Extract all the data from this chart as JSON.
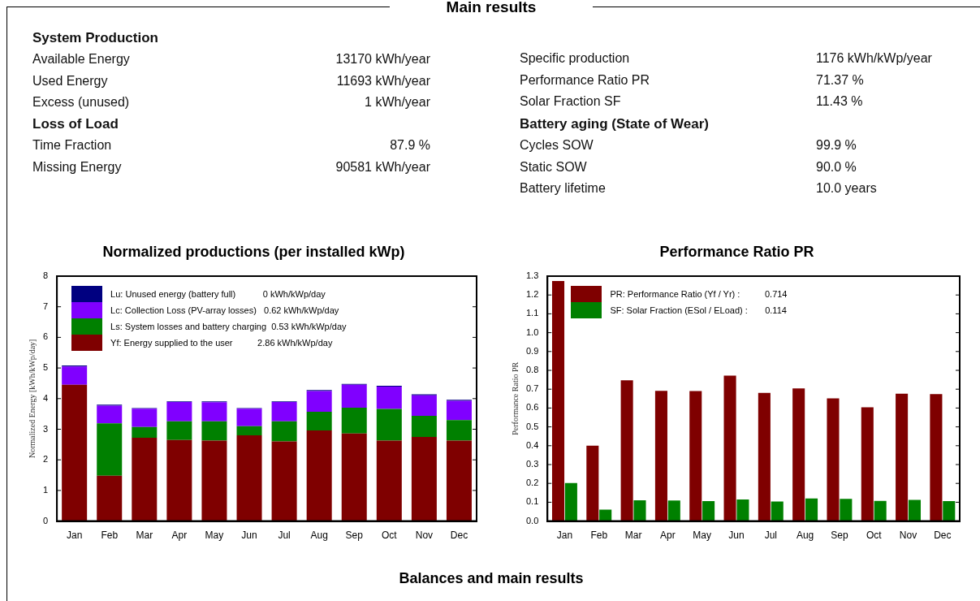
{
  "chart_data": [
    {
      "type": "other",
      "title": "Main results"
    },
    {
      "type": "other",
      "title": "System Production",
      "annotations": [
        "Available Energy",
        "13170 kWh/year",
        "Used Energy",
        "11693 kWh/year",
        "Excess (unused)",
        "1 kWh/year"
      ]
    },
    {
      "type": "other",
      "title": "Loss of Load",
      "annotations": [
        "Time Fraction",
        "87.9 %",
        "Missing Energy",
        "90581 kWh/year"
      ]
    },
    {
      "type": "other",
      "annotations": [
        "Specific production",
        "1176 kWh/kWp/year",
        "Performance Ratio PR",
        "71.37 %",
        "Solar Fraction SF",
        "11.43 %"
      ]
    },
    {
      "type": "other",
      "title": "Battery aging (State of Wear)",
      "annotations": [
        "Cycles SOW",
        "99.9 %",
        "Static SOW",
        "90.0 %",
        "Battery lifetime",
        "10.0 years"
      ]
    },
    {
      "type": "bar",
      "title": "Normalized productions (per installed kWp)",
      "ylabel": "Normalized Energy [kWh/kWp/day]",
      "stacked": true,
      "legend": "top left",
      "categories": [
        "Jan",
        "Feb",
        "Mar",
        "Apr",
        "May",
        "Jun",
        "Jul",
        "Aug",
        "Sep",
        "Oct",
        "Nov",
        "Dec"
      ],
      "ylim": [
        0,
        8
      ],
      "yticks": [
        0,
        1,
        2,
        3,
        4,
        5,
        6,
        7,
        8
      ],
      "series": [
        {
          "name": "Yf: Energy supplied to the user          2.86 kWh/kWp/day",
          "color": "#7f0000",
          "values": [
            4.45,
            1.48,
            2.72,
            2.65,
            2.63,
            2.8,
            2.6,
            2.96,
            2.86,
            2.63,
            2.75,
            2.63
          ]
        },
        {
          "name": "Ls: System losses and battery charging  0.53 kWh/kWp/day",
          "color": "#008000",
          "values": [
            0,
            1.71,
            0.35,
            0.61,
            0.63,
            0.3,
            0.66,
            0.61,
            0.84,
            1.03,
            0.69,
            0.67
          ]
        },
        {
          "name": "Lc: Collection Loss (PV-array losses)   0.62 kWh/kWp/day",
          "color": "#8000ff",
          "values": [
            0.6,
            0.58,
            0.6,
            0.63,
            0.62,
            0.57,
            0.63,
            0.68,
            0.75,
            0.73,
            0.67,
            0.63
          ]
        },
        {
          "name": "Lu: Unused energy (battery full)           0 kWh/kWp/day",
          "color": "#000080",
          "values": [
            0.03,
            0.03,
            0.02,
            0.02,
            0.03,
            0.02,
            0.02,
            0.03,
            0.03,
            0.03,
            0.03,
            0.03
          ]
        }
      ]
    },
    {
      "type": "bar",
      "title": "Performance Ratio PR",
      "ylabel": "Performance Ratio PR",
      "legend": "top left",
      "categories": [
        "Jan",
        "Feb",
        "Mar",
        "Apr",
        "May",
        "Jun",
        "Jul",
        "Aug",
        "Sep",
        "Oct",
        "Nov",
        "Dec"
      ],
      "ylim": [
        0,
        1.3
      ],
      "yticks": [
        {
          "value": 0,
          "label": "0.0"
        },
        0.1,
        0.2,
        0.3,
        0.4,
        0.5,
        0.6,
        0.7,
        0.8,
        0.9,
        {
          "value": 1,
          "label": "1.0"
        },
        1.1,
        1.2,
        1.3
      ],
      "series": [
        {
          "name": "PR: Performance Ratio (Yf / Yr) :          0.714",
          "color": "#7f0000",
          "values": [
            1.274,
            0.4,
            0.747,
            0.691,
            0.69,
            0.772,
            0.68,
            0.704,
            0.651,
            0.604,
            0.676,
            0.674
          ]
        },
        {
          "name": "SF: Solar Fraction (ESol / ELoad) :       0.114",
          "color": "#008000",
          "values": [
            0.202,
            0.061,
            0.11,
            0.109,
            0.106,
            0.115,
            0.104,
            0.12,
            0.118,
            0.107,
            0.112,
            0.106
          ]
        }
      ]
    },
    {
      "type": "other",
      "title": "Balances and main results"
    }
  ]
}
